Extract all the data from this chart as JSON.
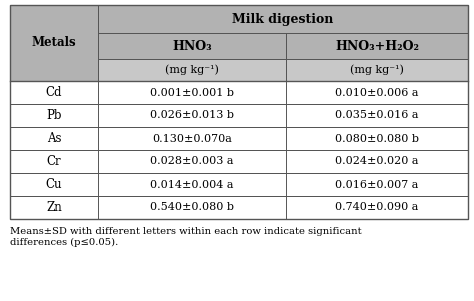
{
  "metals": [
    "Cd",
    "Pb",
    "As",
    "Cr",
    "Cu",
    "Zn"
  ],
  "hno3_values": [
    "0.001±0.001 b",
    "0.026±0.013 b",
    "0.130±0.070a",
    "0.028±0.003 a",
    "0.014±0.004 a",
    "0.540±0.080 b"
  ],
  "hno3_h2o2_values": [
    "0.010±0.006 a",
    "0.035±0.016 a",
    "0.080±0.080 b",
    "0.024±0.020 a",
    "0.016±0.007 a",
    "0.740±0.090 a"
  ],
  "footnote_line1": "Means±SD with different letters within each row indicate significant",
  "footnote_line2": "differences (p≤0.05).",
  "header_bg": "#b2b2b2",
  "header_sub_bg": "#c8c8c8",
  "row_bg": "#ffffff",
  "border_color": "#555555"
}
